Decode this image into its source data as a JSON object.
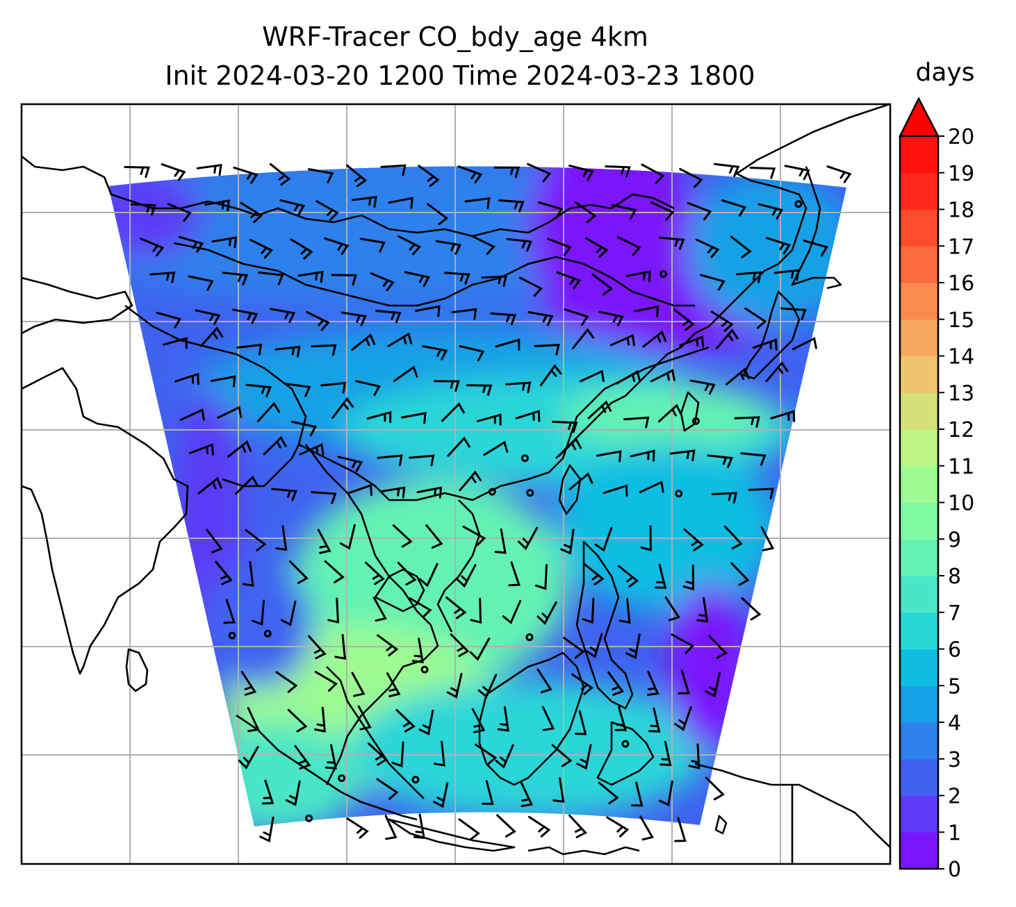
{
  "title": {
    "line1": "WRF-Tracer CO_bdy_age 4km",
    "line2": "Init 2024-03-20 1200 Time 2024-03-23 1800"
  },
  "colorbar": {
    "unit": "days",
    "ticks": [
      "0",
      "1",
      "2",
      "3",
      "4",
      "5",
      "6",
      "7",
      "8",
      "9",
      "10",
      "11",
      "12",
      "13",
      "14",
      "15",
      "16",
      "17",
      "18",
      "19",
      "20"
    ],
    "colors": [
      "#7a16fb",
      "#5c3af6",
      "#3f63f0",
      "#2f80ec",
      "#17a1e6",
      "#0fbde2",
      "#2bd6d8",
      "#48e6c6",
      "#64f2b4",
      "#80f9a3",
      "#9dfb91",
      "#bcf582",
      "#d6e07a",
      "#eec46e",
      "#f6a85f",
      "#fb8a4f",
      "#fd6a3f",
      "#fe4a2f",
      "#ff2a1c",
      "#ff120c"
    ],
    "extend_color": "#ff0000"
  },
  "map": {
    "field_colors": {
      "deep": "#7a16fb",
      "low": "#3f63f0",
      "mid": "#17a1e6",
      "cyan": "#2bd6d8",
      "green": "#64f2b4",
      "light": "#9dfb91"
    },
    "gridline_color": "#b0b0b0"
  }
}
